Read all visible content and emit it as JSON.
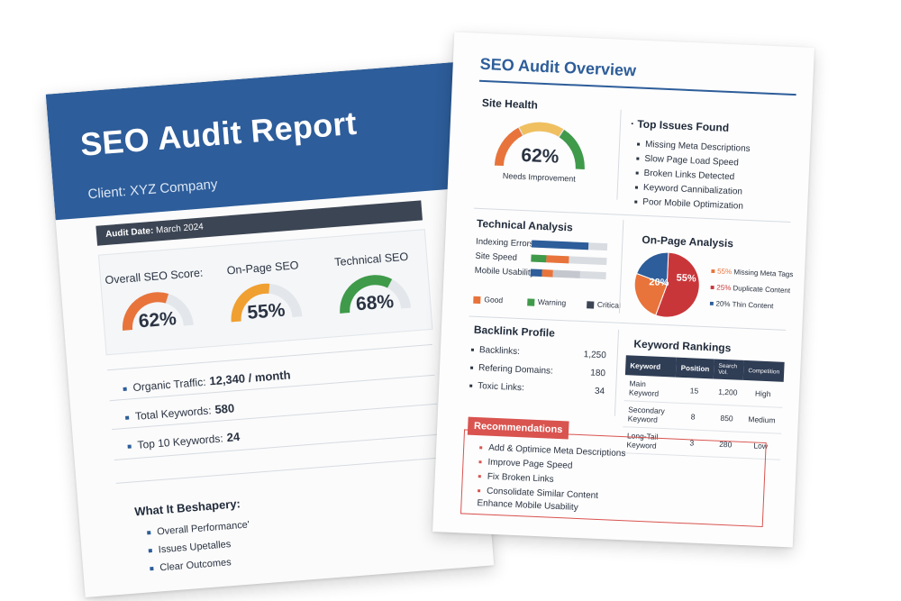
{
  "report": {
    "title": "SEO Audit Report",
    "client": "Client: XYZ Company",
    "audit_date_label": "Audit Date:",
    "audit_date": "March 2024",
    "gauges": [
      {
        "label": "Overall SEO Score:",
        "value": "62%",
        "fraction": 0.62,
        "color": "#e8743b"
      },
      {
        "label": "On-Page SEO",
        "value": "55%",
        "fraction": 0.55,
        "color": "#f0a030"
      },
      {
        "label": "Technical SEO",
        "value": "68%",
        "fraction": 0.68,
        "color": "#3f9a4a"
      }
    ],
    "stats": [
      {
        "label": "Organic Traffic:",
        "value": "12,340 / month"
      },
      {
        "label": "Total Keywords:",
        "value": "580"
      },
      {
        "label": "Top 10 Keywords:",
        "value": "24"
      }
    ],
    "what_title": "What It Beshapery:",
    "what_items": [
      "Overall Performance'",
      "Issues Upetalles",
      "Clear Outcomes"
    ]
  },
  "overview": {
    "title": "SEO Audit Overview",
    "site_health": {
      "title": "Site Health",
      "value": "62%",
      "status": "Needs Improvement",
      "fraction": 0.62
    },
    "top_issues": {
      "title": "Top Issues Found",
      "items": [
        "Missing Meta Descriptions",
        "Slow Page Load Speed",
        "Broken Links Detected",
        "Keyword Cannibalization",
        "Poor Mobile Optimization"
      ]
    },
    "technical": {
      "title": "Technical Analysis",
      "rows": [
        {
          "label": "Indexing Errors",
          "good": 0.75,
          "warning": 0,
          "critical": 0
        },
        {
          "label": "Site Speed",
          "good": 0.2,
          "warning": 0,
          "critical": 0.3
        },
        {
          "label": "Mobile Usability",
          "good": 0.15,
          "warning": 0.35,
          "critical": 0.15
        }
      ],
      "legend": [
        "Good",
        "Warning",
        "Critical"
      ]
    },
    "onpage": {
      "title": "On-Page Analysis",
      "slices": [
        {
          "label": "Missing Meta Tags",
          "pct": "55%",
          "value": 55,
          "color": "#c9363a"
        },
        {
          "label": "Duplicate Content",
          "pct": "25%",
          "value": 25,
          "color": "#e8743b"
        },
        {
          "label": "Thin Content",
          "pct": "20%",
          "value": 20,
          "color": "#2d5d9a"
        }
      ]
    },
    "backlinks": {
      "title": "Backlink Profile",
      "rows": [
        {
          "label": "Backlinks:",
          "value": "1,250"
        },
        {
          "label": "Refering Domains:",
          "value": "180"
        },
        {
          "label": "Toxic Links:",
          "value": "34"
        }
      ]
    },
    "rankings": {
      "title": "Keyword Rankings",
      "headers": [
        "Keyword",
        "Position",
        "Search Vol.",
        "Competition"
      ],
      "rows": [
        [
          "Main Keyword",
          "15",
          "1,200",
          "High"
        ],
        [
          "Secondary Keyword",
          "8",
          "850",
          "Medium"
        ],
        [
          "Long-Tail Keyword",
          "3",
          "280",
          "Low"
        ]
      ]
    },
    "recommendations": {
      "title": "Recommendations",
      "items": [
        "Add & Optimice Meta Descriptions",
        "Improve Page Speed",
        "Fix Broken Links",
        "Consolidate Similar Content",
        "Enhance Mobile Usability"
      ]
    }
  },
  "colors": {
    "brand": "#2d5d9a",
    "good": "#e8743b",
    "warning": "#3f9a4a",
    "critical": "#3c4554",
    "accent_red": "#d9534f"
  }
}
